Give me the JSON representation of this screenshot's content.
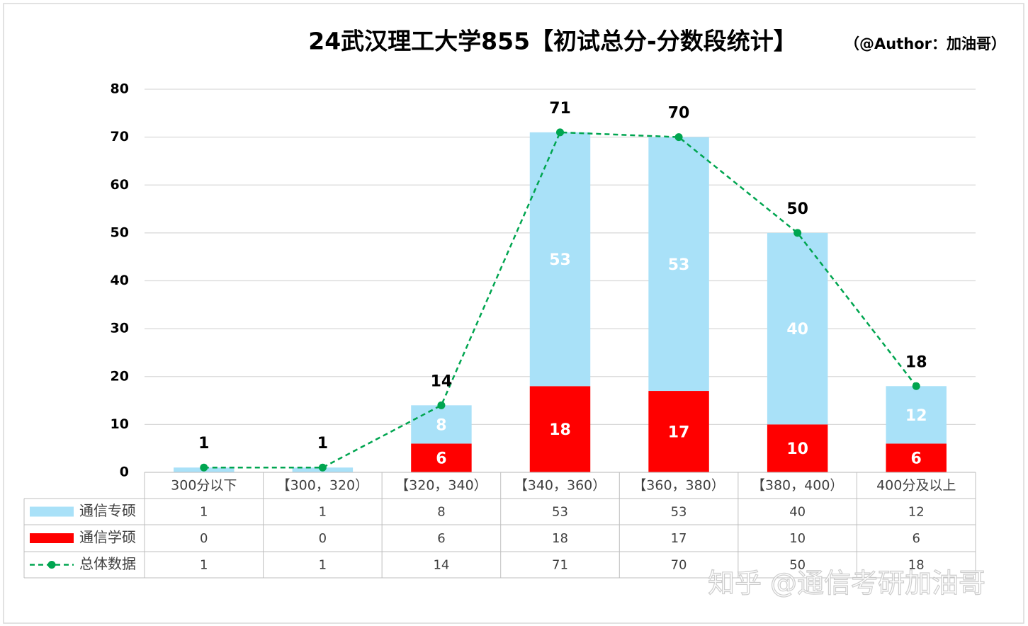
{
  "chart_data": {
    "type": "stacked-bar-line",
    "title": "24武汉理工大学855【初试总分-分数段统计】",
    "subtitle": "（@Author：加油哥）",
    "watermark": "知乎 @通信考研加油哥",
    "categories": [
      "300分以下",
      "【300，320）",
      "【320，340）",
      "【340，360）",
      "【360，380）",
      "【380，400）",
      "400分及以上"
    ],
    "series": [
      {
        "name": "通信专硕",
        "color": "#a9e1f8",
        "type": "bar",
        "values": [
          1,
          1,
          8,
          53,
          53,
          40,
          12
        ]
      },
      {
        "name": "通信学硕",
        "color": "#ff0000",
        "type": "bar",
        "values": [
          0,
          0,
          6,
          18,
          17,
          10,
          6
        ]
      },
      {
        "name": "总体数据",
        "color": "#00a550",
        "type": "line",
        "values": [
          1,
          1,
          14,
          71,
          70,
          50,
          18
        ]
      }
    ],
    "ylim": [
      0,
      80
    ],
    "yticks": [
      0,
      10,
      20,
      30,
      40,
      50,
      60,
      70,
      80
    ],
    "grid": true
  }
}
